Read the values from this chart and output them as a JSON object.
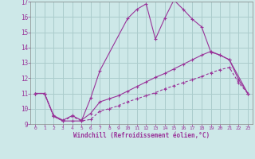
{
  "xlabel": "Windchill (Refroidissement éolien,°C)",
  "xlim": [
    -0.5,
    23.5
  ],
  "ylim": [
    9,
    17
  ],
  "yticks": [
    9,
    10,
    11,
    12,
    13,
    14,
    15,
    16,
    17
  ],
  "xticks": [
    0,
    1,
    2,
    3,
    4,
    5,
    6,
    7,
    8,
    9,
    10,
    11,
    12,
    13,
    14,
    15,
    16,
    17,
    18,
    19,
    20,
    21,
    22,
    23
  ],
  "bg_color": "#cde8e8",
  "line_color": "#993399",
  "grid_color": "#aacccc",
  "line1_x": [
    0,
    1,
    2,
    3,
    4,
    5,
    6,
    7,
    10,
    11,
    12,
    13,
    14,
    15,
    16,
    17,
    18,
    19,
    20,
    21,
    23
  ],
  "line1_y": [
    11.0,
    11.0,
    9.5,
    9.2,
    9.2,
    9.2,
    10.7,
    12.5,
    15.9,
    16.5,
    16.85,
    14.55,
    15.9,
    17.1,
    16.5,
    15.85,
    15.35,
    13.7,
    13.5,
    13.2,
    11.0
  ],
  "line2_x": [
    0,
    1,
    2,
    3,
    4,
    5,
    6,
    7,
    8,
    9,
    10,
    11,
    12,
    13,
    14,
    15,
    16,
    17,
    18,
    19,
    20,
    21,
    22,
    23
  ],
  "line2_y": [
    11.0,
    11.0,
    9.5,
    9.2,
    9.5,
    9.2,
    9.3,
    9.85,
    10.0,
    10.2,
    10.45,
    10.65,
    10.85,
    11.05,
    11.3,
    11.5,
    11.7,
    11.9,
    12.1,
    12.35,
    12.55,
    12.7,
    11.7,
    11.0
  ],
  "line3_x": [
    0,
    1,
    2,
    3,
    4,
    5,
    6,
    7,
    8,
    9,
    10,
    11,
    12,
    13,
    14,
    15,
    16,
    17,
    18,
    19,
    20,
    21,
    22,
    23
  ],
  "line3_y": [
    11.0,
    11.0,
    9.55,
    9.25,
    9.55,
    9.25,
    9.7,
    10.45,
    10.65,
    10.85,
    11.15,
    11.45,
    11.75,
    12.05,
    12.3,
    12.6,
    12.9,
    13.2,
    13.5,
    13.75,
    13.5,
    13.2,
    11.9,
    11.0
  ]
}
